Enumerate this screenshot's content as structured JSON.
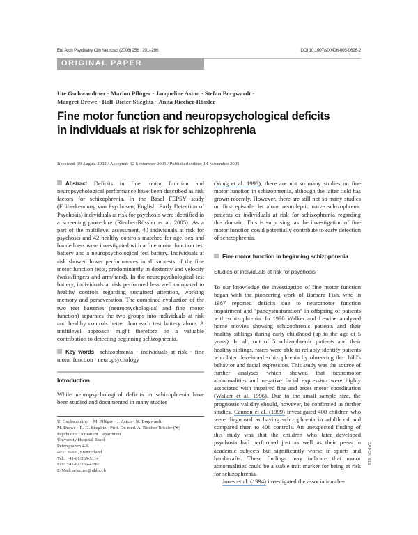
{
  "header": {
    "journal": "Eur Arch Psychiatry Clin Neurosci (2006) 256 : 201–206",
    "doi": "DOI 10.1007/s00406-005-0626-2"
  },
  "section_label": "ORIGINAL PAPER",
  "authors": [
    "Ute Gschwandtner · Marlon Pflüger · Jacqueline Aston · Stefan Borgwardt ·",
    "Margret Drewe · Rolf-Dieter Stieglitz · Anita Riecher-Rössler"
  ],
  "title": [
    "Fine motor function and neuropsychological deficits",
    "in individuals at risk for schizophrenia"
  ],
  "received": "Received: 19 August 2002 / Accepted: 12 September 2005 / Published online: 14 November 2005",
  "abstract": {
    "label": "Abstract",
    "text": "Deficits in fine motor function and neuropsychological performance have been described as risk factors for schizophrenia. In the Basel FEPSY study (Früherkennung von Psychosen; English: Early Detection of Psychosis) individuals at risk for psychosis were identified in a screening procedure (Riecher-Rössler et al. 2005). As a part of the multilevel assessment, 40 individuals at risk for psychosis and 42 healthy controls matched for age, sex and handedness were investigated with a fine motor function test battery and a neuropsychological test battery. Individuals at risk showed lower performances in all subtests of the fine motor function tests, predominantly in dexterity and velocity (wrist/fingers and arm/hand). In the neuropsychological test battery, individuals at risk performed less well compared to healthy controls regarding sustained attention, working memory and perseveration. The combined evaluation of the two test batteries (neuropsychological and fine motor function) separates the two groups into individuals at risk and healthy controls better than each test battery alone. A multilevel approach might therefore be a valuable contribution to detecting beginning schizophrenia."
  },
  "keywords": {
    "label": "Key words",
    "text": "schizophrenia · individuals at risk · fine motor function · neuropsychology"
  },
  "introduction": {
    "heading": "Introduction",
    "text": "While neuropsychological deficits in schizophrenia have been studied and documented in many studies"
  },
  "address": [
    "U. Gschwandtner · M. Pflüger · J. Aston · St. Borgwardt ·",
    "M. Drewe · R.-D. Stieglitz · Prof. Dr. med. A. Riecher-Rössler (✉)",
    "Psychiatric Outpatient Department",
    "University Hospital Basel",
    "Petersgraben 4–6",
    "4031 Basel, Switzerland",
    "Tel.: +41-61/265-5114",
    "Fax: +41-61/265-4599",
    "E-Mail: ariecher@uhbs.ch"
  ],
  "right": {
    "p1": {
      "ref": "Yung et al. 1998",
      "pre": "(",
      "post": "), there are not so many studies on fine motor function in schizophrenia, although the latter field has grown recently. However, there are still not so many studies on first episode, let alone neuroleptic naive schizophrenic patients or individuals at risk for schizophrenia regarding this domain. This is surprising, as the investigation of fine motor function could potentially contribute to early detection of schizophrenia."
    },
    "section_heading": "Fine motor function in beginning schizophrenia",
    "subheading": "Studies of individuals at risk for psychosis",
    "p2": {
      "t1": "To our knowledge the investigation of fine motor function began with the pioneering work of Barbara Fish, who in 1987 reported deficits due to neuromotor function impairment and \"pandysmaturation\" in offspring of patients with schizophrenia. In 1990 Walker and Lewine analyzed home movies showing schizophrenic patients and their healthy siblings during early childhood (up to the age of 5 years). In all, out of 5 schizophrenic patients and their healthy siblings, raters were able to reliably identify patients who later developed schizophrenia by observing the child's behavior and facial expression. This study was the source of further analyses which showed that neuromotor abnormalities and negative facial expression were highly associated with impaired fine and gross motor coordination (",
      "ref1": "Walker et al. 1996",
      "t2": "). Due to the small sample size, the prognostic validity should, however, be confirmed in further studies. ",
      "ref2": "Cannon et al. (1999)",
      "t3": " investigated 400 children who were diagnosed as having schizophrenia in adulthood and compared them to 408 controls. An unexpected finding of this study was that the children who later developed psychosis had performed just as well as their peers in academic subjects but significantly worse in sports and handicrafts. These findings may indicate that motor abnormalities could be a stable trait marker for being at risk for schizophrenia."
    },
    "p3": {
      "ref": "Jones et al. (1994)",
      "post": " investigated the associations be-"
    }
  },
  "side_code": "EAPCN 615",
  "colors": {
    "link_underline": "#7aaee0",
    "label_bar": "#a6a6a6"
  }
}
